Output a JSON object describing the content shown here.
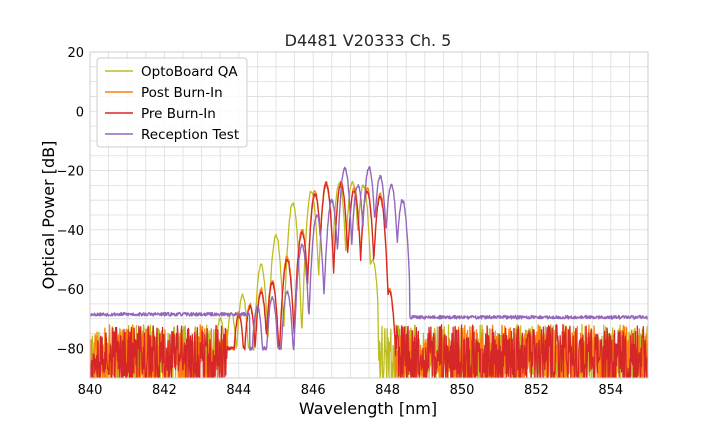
{
  "chart_data": {
    "type": "line",
    "title": "D4481 V20333 Ch. 5",
    "xlabel": "Wavelength [nm]",
    "ylabel": "Optical Power [dB]",
    "xlim": [
      840,
      855
    ],
    "ylim": [
      -90,
      20
    ],
    "xticks": [
      840,
      842,
      844,
      846,
      848,
      850,
      852,
      854
    ],
    "yticks": [
      20,
      0,
      -20,
      -40,
      -60,
      -80
    ],
    "ytick_labels": [
      "20",
      "0",
      "−20",
      "−40",
      "−60",
      "−80"
    ],
    "grid": true,
    "legend_position": "top-left",
    "noise_floor_range": [
      -90,
      -72
    ],
    "series": [
      {
        "name": "OptoBoard QA",
        "color": "#bcbd22",
        "spectrum_range": [
          843.4,
          847.75
        ],
        "peaks": [
          [
            843.5,
            -70
          ],
          [
            843.8,
            -68
          ],
          [
            844.1,
            -62
          ],
          [
            844.6,
            -52
          ],
          [
            845.0,
            -42
          ],
          [
            845.45,
            -31
          ],
          [
            845.95,
            -27
          ],
          [
            846.35,
            -25
          ],
          [
            846.7,
            -24
          ],
          [
            847.05,
            -24
          ],
          [
            847.35,
            -25
          ],
          [
            847.6,
            -50
          ]
        ],
        "noise_floor": -88
      },
      {
        "name": "Post Burn-In",
        "color": "#ff7f0e",
        "spectrum_range": [
          843.7,
          848.2
        ],
        "peaks": [
          [
            844.0,
            -68
          ],
          [
            844.3,
            -65
          ],
          [
            844.6,
            -60
          ],
          [
            844.9,
            -57
          ],
          [
            845.3,
            -49
          ],
          [
            845.7,
            -40
          ],
          [
            846.05,
            -27
          ],
          [
            846.35,
            -24
          ],
          [
            846.75,
            -24
          ],
          [
            847.1,
            -26
          ],
          [
            847.45,
            -26
          ],
          [
            847.8,
            -28
          ],
          [
            848.05,
            -60
          ]
        ],
        "noise_floor": -85
      },
      {
        "name": "Pre Burn-In",
        "color": "#d62728",
        "spectrum_range": [
          843.7,
          848.2
        ],
        "peaks": [
          [
            844.0,
            -69
          ],
          [
            844.3,
            -66
          ],
          [
            844.6,
            -61
          ],
          [
            844.9,
            -58
          ],
          [
            845.3,
            -50
          ],
          [
            845.7,
            -41
          ],
          [
            846.05,
            -28
          ],
          [
            846.35,
            -24.5
          ],
          [
            846.75,
            -24.5
          ],
          [
            847.1,
            -27
          ],
          [
            847.45,
            -27
          ],
          [
            847.8,
            -29
          ],
          [
            848.05,
            -61
          ]
        ],
        "noise_floor": -86
      },
      {
        "name": "Reception Test",
        "color": "#9467bd",
        "spectrum_range": [
          844.3,
          848.6
        ],
        "peaks": [
          [
            844.5,
            -66
          ],
          [
            844.9,
            -63
          ],
          [
            845.3,
            -61
          ],
          [
            845.7,
            -45
          ],
          [
            846.1,
            -35
          ],
          [
            846.5,
            -30
          ],
          [
            846.85,
            -19
          ],
          [
            847.2,
            -25
          ],
          [
            847.5,
            -19
          ],
          [
            847.8,
            -22
          ],
          [
            848.1,
            -25
          ],
          [
            848.4,
            -30
          ]
        ],
        "noise_floor": -68.5
      }
    ]
  }
}
